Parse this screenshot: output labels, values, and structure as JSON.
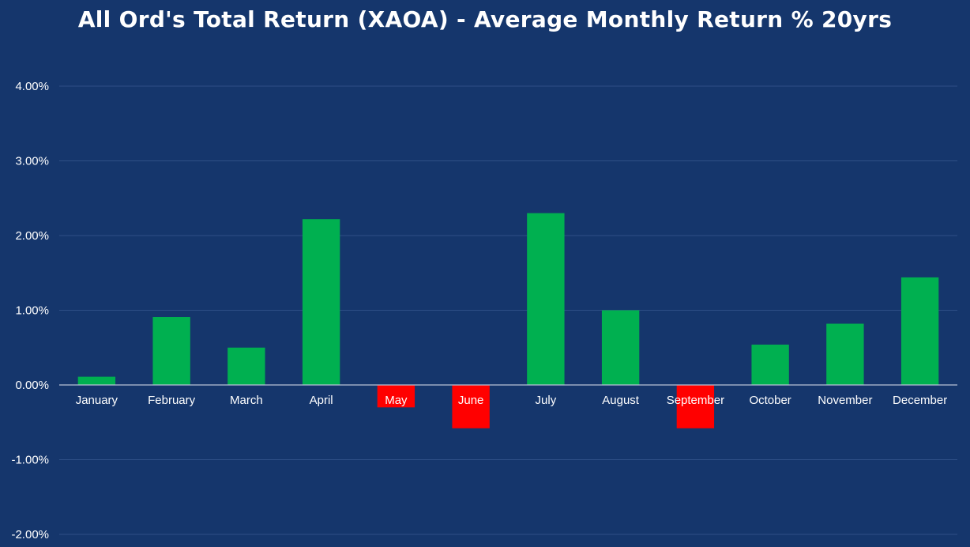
{
  "chart_data": {
    "type": "bar",
    "title": "All Ord's Total Return (XAOA) - Average Monthly Return % 20yrs",
    "xlabel": "",
    "ylabel": "",
    "categories": [
      "January",
      "February",
      "March",
      "April",
      "May",
      "June",
      "July",
      "August",
      "September",
      "October",
      "November",
      "December"
    ],
    "values": [
      0.11,
      0.91,
      0.5,
      2.22,
      -0.3,
      -0.58,
      2.3,
      1.0,
      -0.58,
      0.54,
      0.82,
      1.44
    ],
    "ylim": [
      -2.0,
      4.0
    ],
    "y_ticks": [
      4.0,
      3.0,
      2.0,
      1.0,
      0.0,
      -1.0,
      -2.0
    ],
    "y_tick_labels": [
      "4.00%",
      "3.00%",
      "2.00%",
      "1.00%",
      "0.00%",
      "-1.00%",
      "-2.00%"
    ],
    "grid": true,
    "legend": "none",
    "colors": {
      "background": "#15366c",
      "positive": "#00b050",
      "negative": "#ff0000",
      "grid": "#2e4f86",
      "zero_line": "#b9c3d6",
      "text": "#ffffff"
    }
  }
}
